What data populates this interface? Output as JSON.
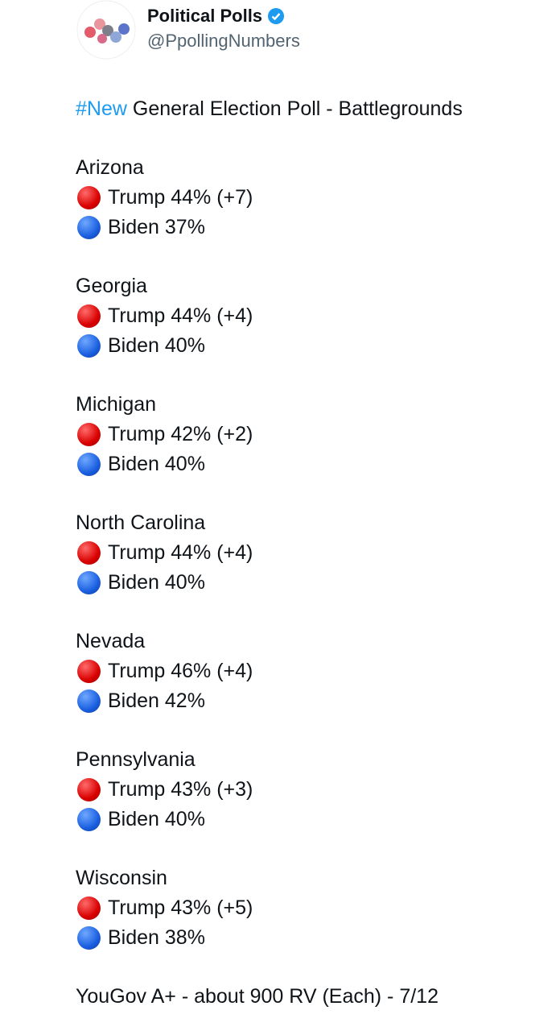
{
  "author": {
    "name": "Political Polls",
    "handle": "@PpollingNumbers"
  },
  "post": {
    "hashtag": "#New",
    "headline": "General Election Poll - Battlegrounds",
    "states": [
      {
        "name": "Arizona",
        "trump": "Trump 44% (+7)",
        "biden": "Biden 37%"
      },
      {
        "name": "Georgia",
        "trump": "Trump 44% (+4)",
        "biden": "Biden 40%"
      },
      {
        "name": "Michigan",
        "trump": "Trump 42% (+2)",
        "biden": "Biden 40%"
      },
      {
        "name": "North Carolina",
        "trump": "Trump 44% (+4)",
        "biden": "Biden 40%"
      },
      {
        "name": "Nevada",
        "trump": "Trump 46% (+4)",
        "biden": "Biden 42%"
      },
      {
        "name": "Pennsylvania",
        "trump": "Trump 43% (+3)",
        "biden": "Biden 40%"
      },
      {
        "name": "Wisconsin",
        "trump": "Trump 43% (+5)",
        "biden": "Biden 38%"
      }
    ],
    "footer": "YouGov A+ - about 900 RV (Each) - 7/12"
  }
}
